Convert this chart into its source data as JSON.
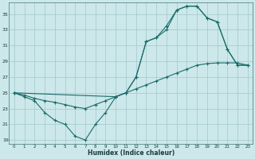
{
  "xlabel": "Humidex (Indice chaleur)",
  "bg_color": "#cce8ea",
  "grid_color": "#a0c8cc",
  "line_color": "#1a6b6b",
  "xlim": [
    -0.5,
    23.5
  ],
  "ylim": [
    18.5,
    36.5
  ],
  "xticks": [
    0,
    1,
    2,
    3,
    4,
    5,
    6,
    7,
    8,
    9,
    10,
    11,
    12,
    13,
    14,
    15,
    16,
    17,
    18,
    19,
    20,
    21,
    22,
    23
  ],
  "yticks": [
    19,
    21,
    23,
    25,
    27,
    29,
    31,
    33,
    35
  ],
  "series": [
    {
      "x": [
        0,
        1,
        2,
        3,
        4,
        5,
        6,
        7,
        8,
        9,
        10,
        11,
        12,
        13,
        14,
        15,
        16,
        17,
        18,
        19,
        20,
        21,
        22,
        23
      ],
      "y": [
        25,
        24.7,
        24.3,
        24.0,
        23.8,
        23.5,
        23.2,
        23.0,
        23.5,
        24.0,
        24.5,
        25.0,
        25.5,
        26.0,
        26.5,
        27.0,
        27.5,
        28.0,
        28.5,
        28.7,
        28.8,
        28.8,
        28.8,
        28.5
      ]
    },
    {
      "x": [
        0,
        1,
        2,
        3,
        4,
        5,
        6,
        7,
        8,
        9,
        10,
        11,
        12,
        13,
        14,
        15,
        16,
        17,
        18,
        19,
        20,
        21,
        22,
        23
      ],
      "y": [
        25,
        24.5,
        24.0,
        22.5,
        21.5,
        21.0,
        19.5,
        19.0,
        21.0,
        22.5,
        24.5,
        25.0,
        27.0,
        31.5,
        32.0,
        33.0,
        35.5,
        36.0,
        36.0,
        34.5,
        34.0,
        30.5,
        28.5,
        28.5
      ]
    },
    {
      "x": [
        0,
        10,
        11,
        12,
        13,
        14,
        15,
        16,
        17,
        18,
        19,
        20,
        21,
        22,
        23
      ],
      "y": [
        25,
        24.5,
        25.0,
        27.0,
        31.5,
        32.0,
        33.5,
        35.5,
        36.0,
        36.0,
        34.5,
        34.0,
        30.5,
        28.5,
        28.5
      ]
    }
  ]
}
